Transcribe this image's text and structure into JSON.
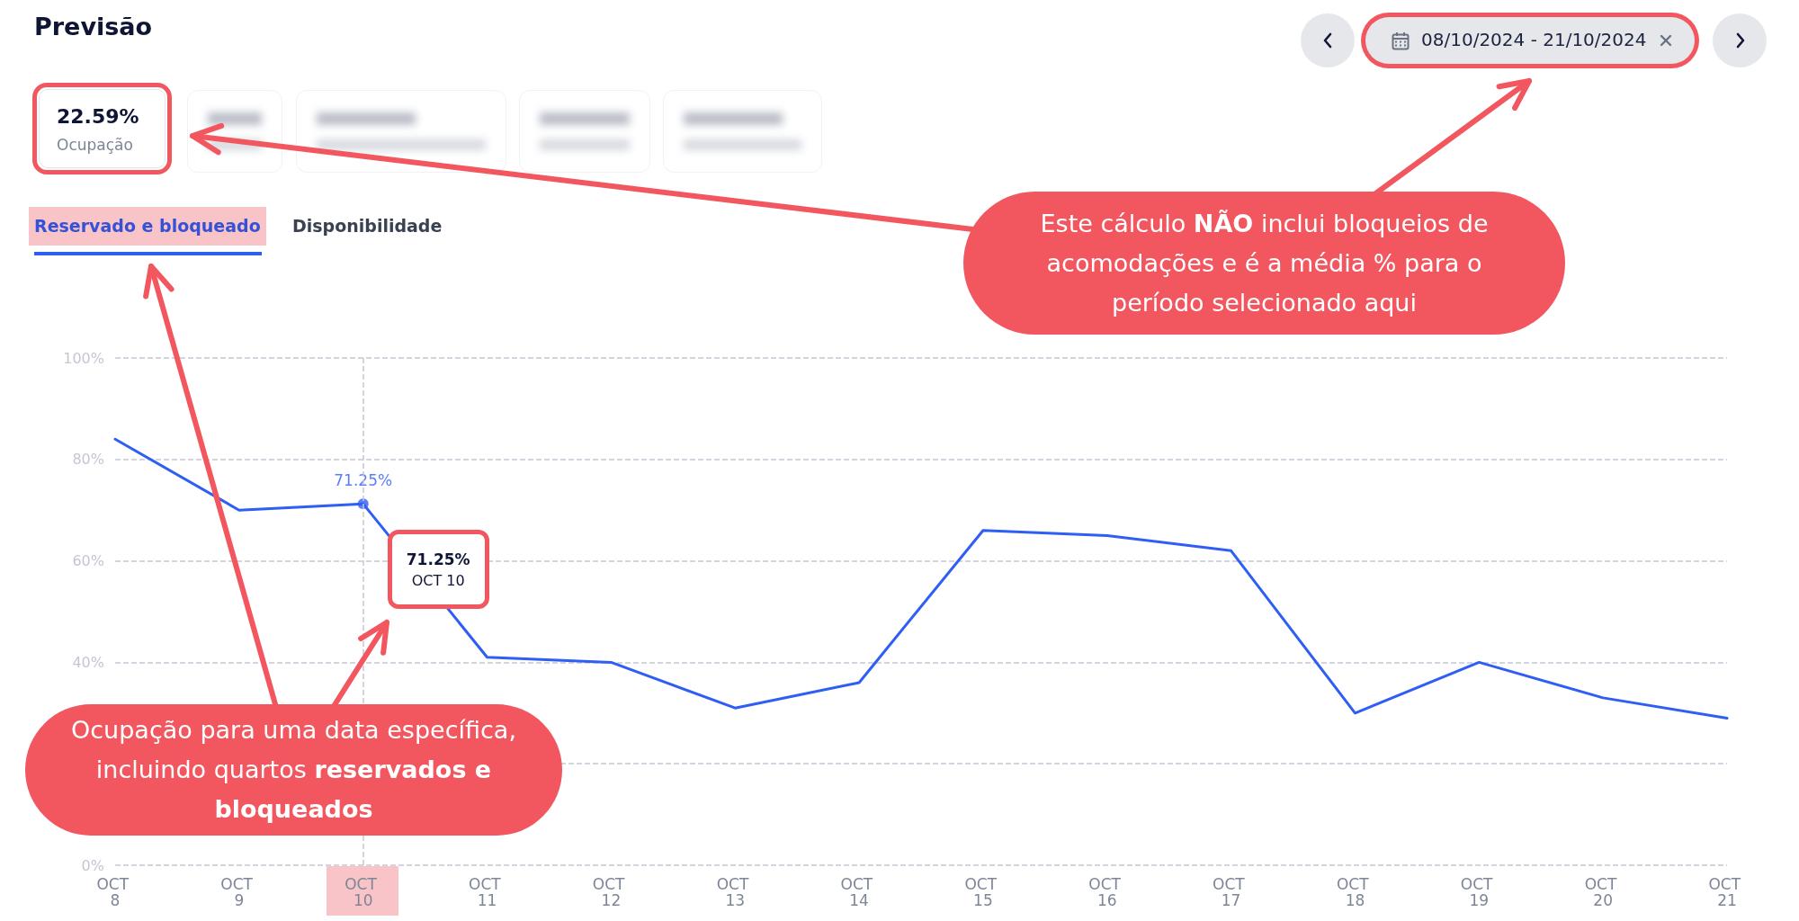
{
  "chart_data": {
    "type": "line",
    "title": "Previsão",
    "categories": [
      "OCT 8",
      "OCT 9",
      "OCT 10",
      "OCT 11",
      "OCT 12",
      "OCT 13",
      "OCT 14",
      "OCT 15",
      "OCT 16",
      "OCT 17",
      "OCT 18",
      "OCT 19",
      "OCT 20",
      "OCT 21"
    ],
    "series": [
      {
        "color": "#2f5ef5",
        "values": [
          84,
          70,
          71.25,
          41,
          40,
          31,
          36,
          66,
          65,
          62,
          30,
          40,
          33,
          29
        ]
      },
      {
        "type": "scatter",
        "color": "#2f5ef5",
        "x": [
          "OCT 10"
        ],
        "values": [
          71.25
        ],
        "value_labels": [
          "71.25%"
        ]
      }
    ],
    "ylim": [
      0,
      100
    ],
    "yticks": [
      {
        "value": 0,
        "label": "0%"
      },
      {
        "value": 20,
        "label": null
      },
      {
        "value": 40,
        "label": "40%"
      },
      {
        "value": 60,
        "label": "60%"
      },
      {
        "value": 80,
        "label": "80%"
      },
      {
        "value": 100,
        "label": "100%"
      }
    ],
    "grid": "y",
    "line_style": "solid",
    "ref_lines": [
      {
        "axis": "x",
        "value": "OCT 10",
        "color": "#c5c8d4",
        "line_style": "dashed"
      }
    ],
    "annotations": [
      "22.59%",
      "Ocupação",
      "Reservado e bloqueado",
      "Disponibilidade",
      "08/10/2024 - 21/10/2024",
      "Este cálculo ",
      "NÃO",
      " inclui bloqueios de acomodações e é a média % para o período selecionado aqui",
      "Ocupação para uma data específica, incluindo quartos ",
      "reservados e bloqueados",
      "71.25%\nOCT 10"
    ]
  }
}
